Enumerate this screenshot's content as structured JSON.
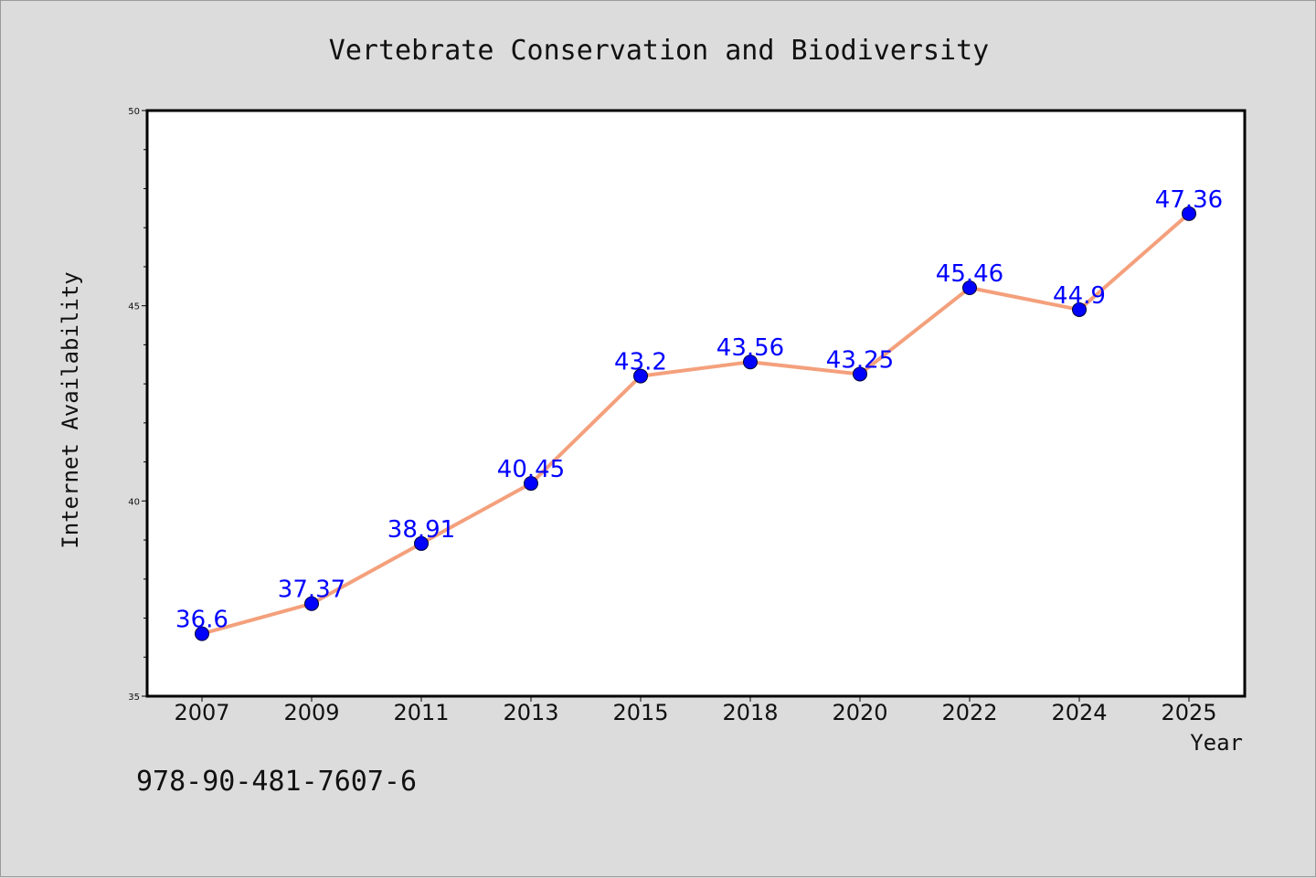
{
  "chart_data": {
    "type": "line",
    "title": "Vertebrate Conservation and Biodiversity",
    "xlabel": "Year",
    "ylabel": "Internet Availability",
    "categories": [
      "2007",
      "2009",
      "2011",
      "2013",
      "2015",
      "2018",
      "2020",
      "2022",
      "2024",
      "2025"
    ],
    "series": [
      {
        "values": [
          36.6,
          37.37,
          38.91,
          40.45,
          43.2,
          43.56,
          43.25,
          45.46,
          44.9,
          47.36
        ],
        "data_labels": [
          "36.6",
          "37.37",
          "38.91",
          "40.45",
          "43.2",
          "43.56",
          "43.25",
          "45.46",
          "44.9",
          "47.36"
        ],
        "line_color": "#f4a07c",
        "marker_color": "#0000ff",
        "label_color": "#0000ff"
      }
    ],
    "ylim": [
      35,
      50
    ],
    "yticks": [
      "35",
      "40",
      "45",
      "50"
    ],
    "grid": false,
    "legend": "none"
  },
  "footer": {
    "isbn": "978-90-481-7607-6"
  },
  "colors": {
    "background": "#dcdcdc",
    "plot_background": "#ffffff"
  }
}
